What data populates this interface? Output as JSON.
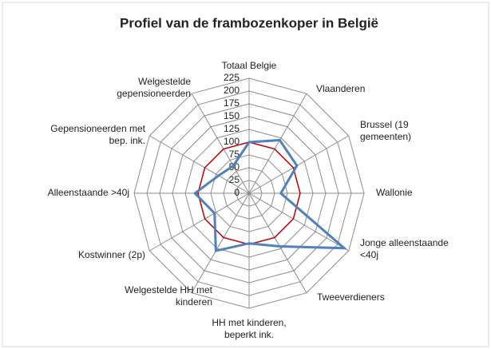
{
  "chart_data": {
    "type": "radar",
    "title": "Profiel van de frambozenkoper in België",
    "categories": [
      "Totaal Belgie",
      "Vlaanderen",
      "Brussel (19 gemeenten)",
      "Wallonie",
      "Jonge alleenstaande <40j",
      "Tweeverdieners",
      "HH met kinderen, beperkt ink.",
      "Welgestelde HH met kinderen",
      "Kostwinner (2p)",
      "Alleenstaande >40j",
      "Gepensioneerden met bep. ink.",
      "Welgestelde gepensioneerden"
    ],
    "series": [
      {
        "color": "#c00000",
        "values": [
          100,
          100,
          100,
          100,
          100,
          100,
          100,
          100,
          100,
          100,
          100,
          100
        ]
      },
      {
        "color": "#4f81bd",
        "values": [
          100,
          120,
          108,
          62,
          215,
          120,
          98,
          130,
          78,
          106,
          69,
          62
        ]
      }
    ],
    "ylim": [
      0,
      225
    ],
    "yticks": [
      0,
      25,
      50,
      75,
      100,
      125,
      150,
      175,
      200,
      225
    ],
    "grid": true
  }
}
